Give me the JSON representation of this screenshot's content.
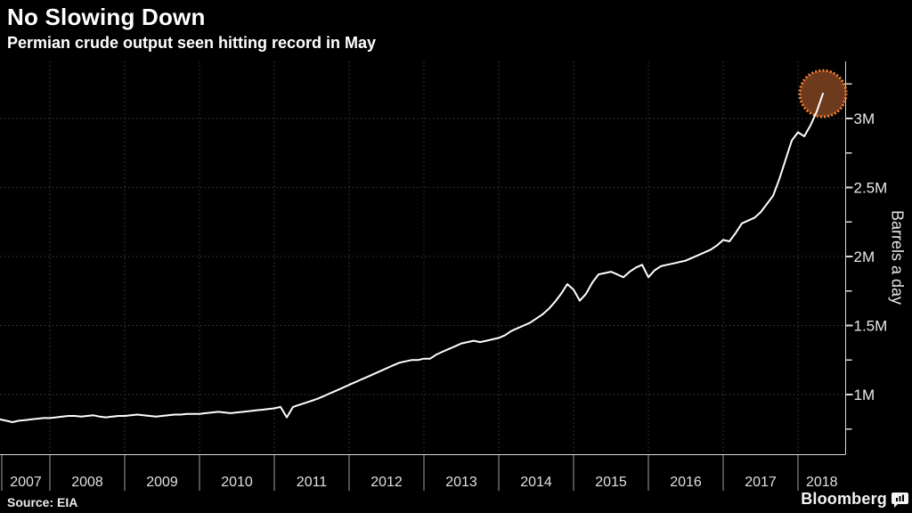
{
  "chart_data": {
    "type": "line",
    "title": "No Slowing Down",
    "subtitle": "Permian crude output seen hitting record in May",
    "source_label": "Source: EIA",
    "brand": "Bloomberg",
    "ylabel": "Barrels a day",
    "legend": "none",
    "grid": "dotted",
    "background": "#000000",
    "x_year_labels": [
      "2007",
      "2008",
      "2009",
      "2010",
      "2011",
      "2012",
      "2013",
      "2014",
      "2015",
      "2016",
      "2017",
      "2018"
    ],
    "y_major_ticks": [
      {
        "value": 1.0,
        "label": "1M"
      },
      {
        "value": 1.5,
        "label": "1.5M"
      },
      {
        "value": 2.0,
        "label": "2M"
      },
      {
        "value": 2.5,
        "label": "2.5M"
      },
      {
        "value": 3.0,
        "label": "3M"
      }
    ],
    "y_minor_tick_values": [
      0.75,
      1.25,
      1.75,
      2.25,
      2.75,
      3.25
    ],
    "ylim_shown": [
      0.57,
      3.41
    ],
    "series": [
      {
        "name": "Permian crude oil output",
        "unit": "million barrels a day",
        "frequency": "monthly",
        "first_month": "2007-05",
        "last_month": "2018-05",
        "values": [
          0.82,
          0.81,
          0.8,
          0.81,
          0.815,
          0.82,
          0.825,
          0.83,
          0.83,
          0.835,
          0.84,
          0.845,
          0.845,
          0.84,
          0.845,
          0.85,
          0.84,
          0.835,
          0.84,
          0.845,
          0.845,
          0.85,
          0.855,
          0.85,
          0.845,
          0.84,
          0.845,
          0.85,
          0.855,
          0.855,
          0.86,
          0.86,
          0.86,
          0.865,
          0.87,
          0.875,
          0.87,
          0.865,
          0.87,
          0.875,
          0.88,
          0.885,
          0.89,
          0.895,
          0.9,
          0.91,
          0.835,
          0.91,
          0.925,
          0.94,
          0.955,
          0.97,
          0.99,
          1.01,
          1.03,
          1.05,
          1.07,
          1.09,
          1.11,
          1.13,
          1.15,
          1.17,
          1.19,
          1.21,
          1.23,
          1.24,
          1.25,
          1.25,
          1.26,
          1.26,
          1.29,
          1.31,
          1.33,
          1.35,
          1.37,
          1.38,
          1.39,
          1.38,
          1.39,
          1.4,
          1.41,
          1.43,
          1.46,
          1.48,
          1.5,
          1.52,
          1.55,
          1.58,
          1.62,
          1.67,
          1.73,
          1.8,
          1.76,
          1.68,
          1.73,
          1.81,
          1.87,
          1.88,
          1.89,
          1.87,
          1.85,
          1.89,
          1.92,
          1.94,
          1.85,
          1.9,
          1.93,
          1.94,
          1.95,
          1.96,
          1.97,
          1.99,
          2.01,
          2.03,
          2.05,
          2.08,
          2.12,
          2.11,
          2.17,
          2.24,
          2.26,
          2.28,
          2.32,
          2.38,
          2.44,
          2.56,
          2.7,
          2.84,
          2.9,
          2.87,
          2.95,
          3.05,
          3.18
        ]
      }
    ],
    "annotations": [
      {
        "type": "dotted-circle-highlight",
        "month": "2018-05",
        "value": 3.18,
        "fill": "#6e3a1e",
        "stroke": "#f28033"
      }
    ],
    "colors": {
      "line": "#ffffff",
      "grid": "#3e3e3e",
      "axis": "#d9d9d9",
      "year_separator": "#9f9f9f",
      "tick_text": "#e8e8e8"
    }
  }
}
